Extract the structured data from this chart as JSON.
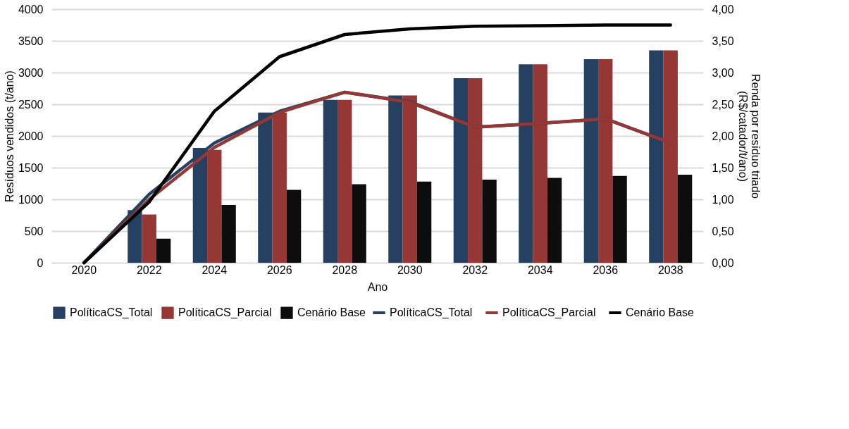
{
  "chart_data": {
    "type": "bar",
    "xlabel": "Ano",
    "ylabel": "Resíduos vendidos (t/ano)",
    "y2label": "Renda por resíduo triado\n(R$/catador/t/ano)",
    "categories": [
      "2020",
      "2022",
      "2024",
      "2026",
      "2028",
      "2030",
      "2032",
      "2034",
      "2036",
      "2038"
    ],
    "series": [
      {
        "name": "PolíticaCS_Total",
        "color": "#264061",
        "values": [
          0,
          830,
          1810,
          2370,
          2570,
          2640,
          2910,
          3130,
          3210,
          3350
        ]
      },
      {
        "name": "PolíticaCS_Parcial",
        "color": "#953735",
        "values": [
          0,
          760,
          1780,
          2370,
          2570,
          2640,
          2910,
          3130,
          3210,
          3350
        ]
      },
      {
        "name": "Cenário Base",
        "color": "#0d0d0d",
        "values": [
          0,
          380,
          910,
          1150,
          1240,
          1280,
          1310,
          1340,
          1370,
          1390
        ]
      },
      {
        "name": "PolíticaCS_Total",
        "type": "line",
        "axis": "y2",
        "color": "#264061",
        "values": [
          0,
          1.08,
          1.89,
          2.39,
          2.69,
          2.54,
          2.14,
          2.2,
          2.27,
          1.89
        ]
      },
      {
        "name": "PolíticaCS_Parcial",
        "type": "line",
        "axis": "y2",
        "color": "#953735",
        "values": [
          0,
          1.0,
          1.82,
          2.37,
          2.69,
          2.53,
          2.14,
          2.2,
          2.27,
          1.89
        ]
      },
      {
        "name": "Cenário Base",
        "type": "line",
        "axis": "y2",
        "color": "#000000",
        "values": [
          0,
          0.96,
          2.39,
          3.25,
          3.6,
          3.69,
          3.73,
          3.74,
          3.75,
          3.75
        ]
      }
    ],
    "ylim": [
      0,
      4000
    ],
    "yticks": [
      0,
      500,
      1000,
      1500,
      2000,
      2500,
      3000,
      3500,
      4000
    ],
    "y2lim": [
      0,
      4
    ],
    "y2ticks": [
      {
        "value": 0,
        "label": "0,00"
      },
      {
        "value": 0.5,
        "label": "0,50"
      },
      {
        "value": 1,
        "label": "1,00"
      },
      {
        "value": 1.5,
        "label": "1,50"
      },
      {
        "value": 2,
        "label": "2,00"
      },
      {
        "value": 2.5,
        "label": "2,50"
      },
      {
        "value": 3,
        "label": "3,00"
      },
      {
        "value": 3.5,
        "label": "3,50"
      },
      {
        "value": 4,
        "label": "4,00"
      }
    ],
    "grid": "y",
    "legend": "bottom",
    "marker": "none",
    "line_style": "solid"
  }
}
